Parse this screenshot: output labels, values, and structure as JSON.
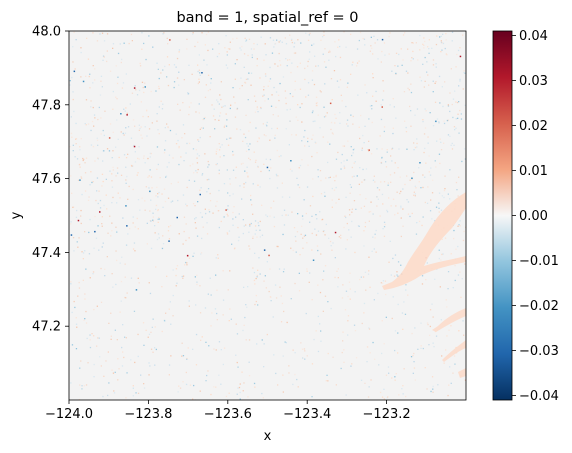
{
  "chart_data": {
    "type": "heatmap",
    "title": "band = 1, spatial_ref = 0",
    "xlabel": "x",
    "ylabel": "y",
    "xlim": [
      -124.0,
      -123.0
    ],
    "ylim": [
      47.0,
      48.0
    ],
    "x_ticks": [
      {
        "value": -124.0,
        "label": "−124.0"
      },
      {
        "value": -123.8,
        "label": "−123.8"
      },
      {
        "value": -123.6,
        "label": "−123.6"
      },
      {
        "value": -123.4,
        "label": "−123.4"
      },
      {
        "value": -123.2,
        "label": "−123.2"
      }
    ],
    "y_ticks": [
      {
        "value": 48.0,
        "label": "48.0"
      },
      {
        "value": 47.8,
        "label": "47.8"
      },
      {
        "value": 47.6,
        "label": "47.6"
      },
      {
        "value": 47.4,
        "label": "47.4"
      },
      {
        "value": 47.2,
        "label": "47.2"
      }
    ],
    "colorbar": {
      "colormap": "RdBu_r",
      "vmin": -0.041,
      "vmax": 0.041,
      "ticks": [
        {
          "value": 0.04,
          "label": "0.04"
        },
        {
          "value": 0.03,
          "label": "0.03"
        },
        {
          "value": 0.02,
          "label": "0.02"
        },
        {
          "value": 0.01,
          "label": "0.01"
        },
        {
          "value": 0.0,
          "label": "0.00"
        },
        {
          "value": -0.01,
          "label": "−0.01"
        },
        {
          "value": -0.02,
          "label": "−0.02"
        },
        {
          "value": -0.03,
          "label": "−0.03"
        },
        {
          "value": -0.04,
          "label": "−0.04"
        }
      ]
    },
    "field_description": "near-zero noisy raster with slightly positive values along a water channel on the east side",
    "colors": {
      "max": "#67001f",
      "zero": "#f7f7f7",
      "min": "#053061"
    }
  }
}
